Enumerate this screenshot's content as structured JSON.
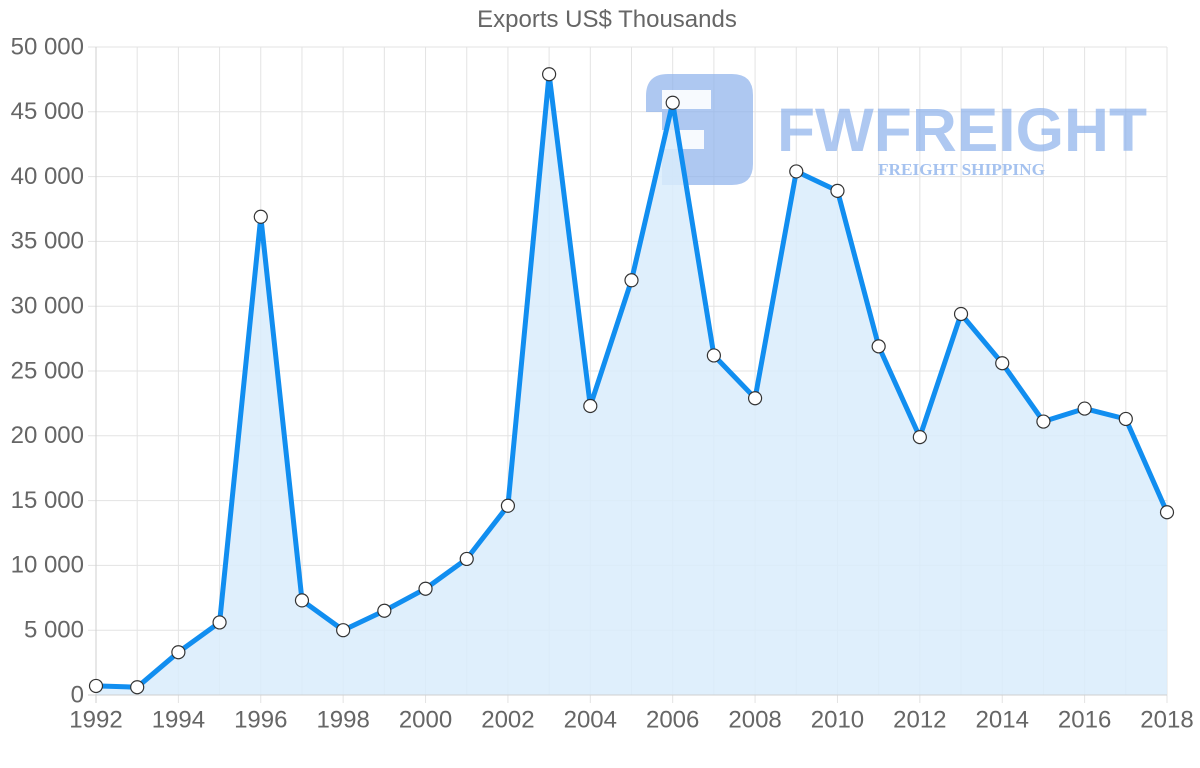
{
  "chart_data": {
    "type": "line",
    "title": "Exports US$ Thousands",
    "xlabel": "",
    "ylabel": "",
    "x": [
      1992,
      1993,
      1994,
      1995,
      1996,
      1997,
      1998,
      1999,
      2000,
      2001,
      2002,
      2003,
      2004,
      2005,
      2006,
      2007,
      2008,
      2009,
      2010,
      2011,
      2012,
      2013,
      2014,
      2015,
      2016,
      2017,
      2018
    ],
    "series": [
      {
        "name": "Exports US$ Thousands",
        "values": [
          700,
          600,
          3300,
          5600,
          36900,
          7300,
          5000,
          6500,
          8200,
          10500,
          14600,
          47900,
          22300,
          32000,
          45700,
          26200,
          22900,
          40400,
          38900,
          26900,
          19900,
          29400,
          25600,
          21100,
          22100,
          21300,
          14100
        ],
        "line_color": "#118ef0",
        "fill_color": "#d9ecfc",
        "filled": true,
        "markers": "white circles"
      }
    ],
    "ylim": [
      0,
      50000
    ],
    "yticks": [
      0,
      5000,
      10000,
      15000,
      20000,
      25000,
      30000,
      35000,
      40000,
      45000,
      50000
    ],
    "ytick_labels": [
      "0",
      "5 000",
      "10 000",
      "15 000",
      "20 000",
      "25 000",
      "30 000",
      "35 000",
      "40 000",
      "45 000",
      "50 000"
    ],
    "xticks": [
      1992,
      1994,
      1996,
      1998,
      2000,
      2002,
      2004,
      2006,
      2008,
      2010,
      2012,
      2014,
      2016,
      2018
    ],
    "xtick_labels": [
      "1992",
      "1994",
      "1996",
      "1998",
      "2000",
      "2002",
      "2004",
      "2006",
      "2008",
      "2010",
      "2012",
      "2014",
      "2016",
      "2018"
    ],
    "grid": true,
    "legend": "none"
  },
  "watermark": {
    "brand": "FWFREIGHT",
    "tagline": "FREIGHT SHIPPING",
    "color": "#8fb3ec"
  },
  "colors": {
    "line": "#118ef0",
    "fill": "#d9ecfc",
    "grid": "#e3e3e3",
    "text": "#666666"
  }
}
